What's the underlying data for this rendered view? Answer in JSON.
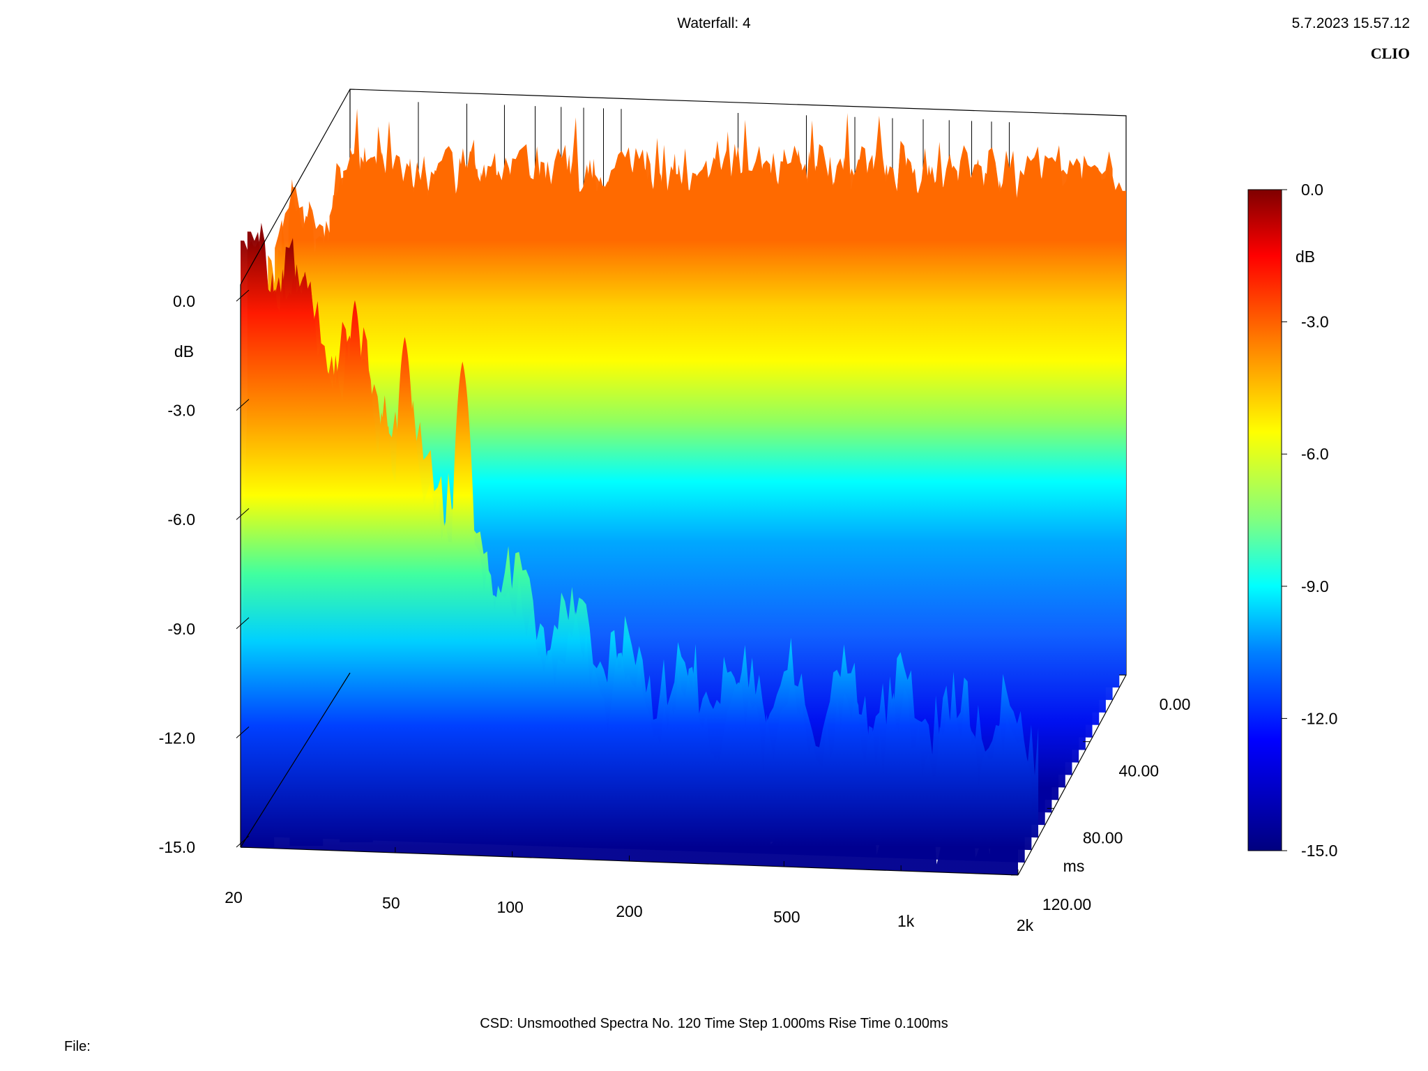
{
  "header": {
    "title": "Waterfall: 4",
    "timestamp": "5.7.2023 15.57.12",
    "brand": "CLIO"
  },
  "footer": {
    "info": "CSD:   Unsmoothed   Spectra No. 120   Time Step 1.000ms   Rise Time 0.100ms",
    "file_label": "File:"
  },
  "chart_data": {
    "type": "waterfall",
    "title": "Waterfall: 4",
    "x_axis": {
      "label": "",
      "scale": "log",
      "range": [
        20,
        2000
      ],
      "ticks": [
        20,
        50,
        100,
        200,
        500,
        1000,
        2000
      ],
      "tick_labels": [
        "20",
        "50",
        "100",
        "200",
        "500",
        "1k",
        "2k"
      ]
    },
    "z_axis": {
      "label": "ms",
      "range": [
        0,
        120
      ],
      "ticks": [
        0,
        40,
        80,
        120
      ],
      "tick_labels": [
        "0.00",
        "40.00",
        "80.00",
        "120.00"
      ]
    },
    "y_axis": {
      "label": "dB",
      "range": [
        -15,
        0
      ],
      "ticks": [
        0,
        -3,
        -6,
        -9,
        -12,
        -15
      ],
      "tick_labels": [
        "0.0",
        "-3.0",
        "-6.0",
        "-9.0",
        "-12.0",
        "-15.0"
      ]
    },
    "colorbar": {
      "label": "dB",
      "range": [
        -15,
        0
      ],
      "ticks": [
        0,
        -3,
        -6,
        -9,
        -12,
        -15
      ],
      "tick_labels": [
        "0.0",
        "-3.0",
        "-6.0",
        "-9.0",
        "-12.0",
        "-15.0"
      ],
      "stops": [
        {
          "db": 0,
          "color": "#7f0000"
        },
        {
          "db": -1.5,
          "color": "#ff0000"
        },
        {
          "db": -3.5,
          "color": "#ff8000"
        },
        {
          "db": -5.5,
          "color": "#ffff00"
        },
        {
          "db": -7.5,
          "color": "#80ff80"
        },
        {
          "db": -9.0,
          "color": "#00ffff"
        },
        {
          "db": -10.5,
          "color": "#0080ff"
        },
        {
          "db": -12.5,
          "color": "#0000ff"
        },
        {
          "db": -15,
          "color": "#00007f"
        }
      ]
    },
    "spectra_count": 120,
    "time_step_ms": 1.0,
    "rise_time_ms": 0.1,
    "smoothing": "Unsmoothed"
  }
}
